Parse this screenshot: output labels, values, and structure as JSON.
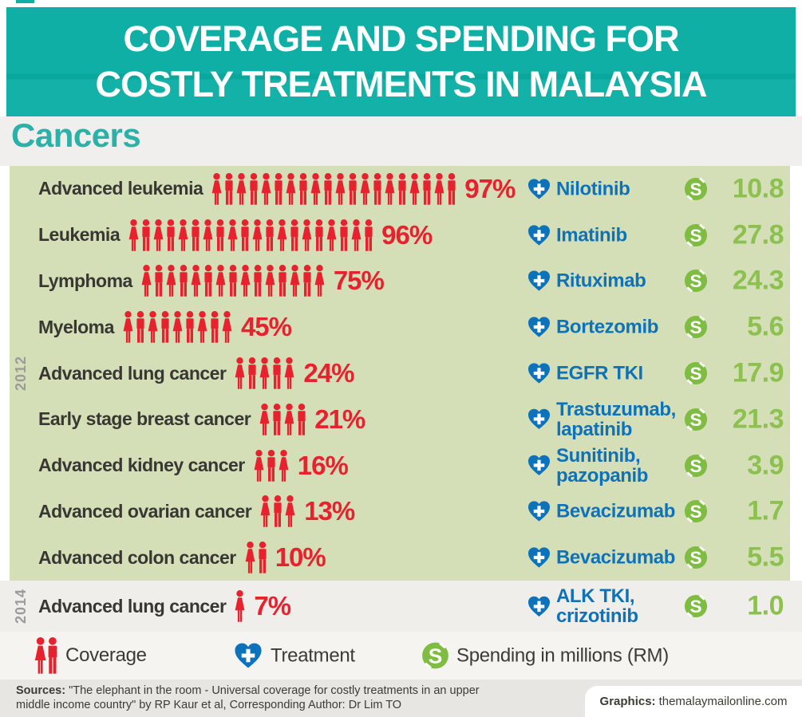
{
  "header": {
    "title_line1": "COVERAGE AND SPENDING FOR",
    "title_line2": "COSTLY TREATMENTS IN MALAYSIA"
  },
  "section": {
    "title": "Cancers"
  },
  "colors": {
    "teal": "#0fafa5",
    "section_title_teal": "#2bb2a8",
    "panel_green": "#d4dfb8",
    "coverage_red": "#e7222e",
    "treatment_blue": "#0d72b9",
    "spending_green": "#8cc04f",
    "dollar_disc_green": "#7fbc42",
    "year_gray": "#9b9b99",
    "label_dark": "#383732"
  },
  "groups": [
    {
      "year": "2012",
      "rows": [
        {
          "condition": "Advanced leukemia",
          "coverage_pct": "97%",
          "icon_count": 20,
          "treatment": "Nilotinib",
          "spending": "10.8"
        },
        {
          "condition": "Leukemia",
          "coverage_pct": "96%",
          "icon_count": 20,
          "treatment": "Imatinib",
          "spending": "27.8"
        },
        {
          "condition": "Lymphoma",
          "coverage_pct": "75%",
          "icon_count": 15,
          "treatment": "Rituximab",
          "spending": "24.3"
        },
        {
          "condition": "Myeloma",
          "coverage_pct": "45%",
          "icon_count": 9,
          "treatment": "Bortezomib",
          "spending": "5.6"
        },
        {
          "condition": "Advanced lung cancer",
          "coverage_pct": "24%",
          "icon_count": 5,
          "treatment": "EGFR TKI",
          "spending": "17.9"
        },
        {
          "condition": "Early stage breast cancer",
          "coverage_pct": "21%",
          "icon_count": 4,
          "treatment": "Trastuzumab,\nlapatinib",
          "spending": "21.3"
        },
        {
          "condition": "Advanced kidney cancer",
          "coverage_pct": "16%",
          "icon_count": 3,
          "treatment": "Sunitinib,\npazopanib",
          "spending": "3.9"
        },
        {
          "condition": "Advanced ovarian cancer",
          "coverage_pct": "13%",
          "icon_count": 3,
          "treatment": "Bevacizumab",
          "spending": "1.7"
        },
        {
          "condition": "Advanced colon cancer",
          "coverage_pct": "10%",
          "icon_count": 2,
          "treatment": "Bevacizumab",
          "spending": "5.5"
        }
      ]
    },
    {
      "year": "2014",
      "rows": [
        {
          "condition": "Advanced lung cancer",
          "coverage_pct": "7%",
          "icon_count": 1,
          "treatment": "ALK TKI,\ncrizotinib",
          "spending": "1.0"
        }
      ]
    }
  ],
  "legend": {
    "items": [
      {
        "icon": "people-icon",
        "label": "Coverage"
      },
      {
        "icon": "heart-cross-icon",
        "label": "Treatment"
      },
      {
        "icon": "dollar-icon",
        "label": "Spending in millions (RM)"
      }
    ]
  },
  "footer": {
    "sources_label": "Sources:",
    "sources_text": "\"The elephant in the room - Universal coverage for costly treatments in an upper middle income country\" by RP Kaur et al, Corresponding Author: Dr Lim TO",
    "graphics_label": "Graphics:",
    "graphics_text": "themalaymailonline.com"
  },
  "chart_data": {
    "type": "pictogram",
    "title": "Coverage and spending for costly treatments in Malaysia",
    "subtitle": "Cancers",
    "unit_per_icon_pct": 5,
    "legend": [
      "Coverage",
      "Treatment",
      "Spending in millions (RM)"
    ],
    "rows": [
      {
        "year": 2012,
        "condition": "Advanced leukemia",
        "coverage_pct": 97,
        "treatment": "Nilotinib",
        "spending_rm_millions": 10.8
      },
      {
        "year": 2012,
        "condition": "Leukemia",
        "coverage_pct": 96,
        "treatment": "Imatinib",
        "spending_rm_millions": 27.8
      },
      {
        "year": 2012,
        "condition": "Lymphoma",
        "coverage_pct": 75,
        "treatment": "Rituximab",
        "spending_rm_millions": 24.3
      },
      {
        "year": 2012,
        "condition": "Myeloma",
        "coverage_pct": 45,
        "treatment": "Bortezomib",
        "spending_rm_millions": 5.6
      },
      {
        "year": 2012,
        "condition": "Advanced lung cancer",
        "coverage_pct": 24,
        "treatment": "EGFR TKI",
        "spending_rm_millions": 17.9
      },
      {
        "year": 2012,
        "condition": "Early stage breast cancer",
        "coverage_pct": 21,
        "treatment": "Trastuzumab, lapatinib",
        "spending_rm_millions": 21.3
      },
      {
        "year": 2012,
        "condition": "Advanced kidney cancer",
        "coverage_pct": 16,
        "treatment": "Sunitinib, pazopanib",
        "spending_rm_millions": 3.9
      },
      {
        "year": 2012,
        "condition": "Advanced ovarian cancer",
        "coverage_pct": 13,
        "treatment": "Bevacizumab",
        "spending_rm_millions": 1.7
      },
      {
        "year": 2012,
        "condition": "Advanced colon cancer",
        "coverage_pct": 10,
        "treatment": "Bevacizumab",
        "spending_rm_millions": 5.5
      },
      {
        "year": 2014,
        "condition": "Advanced lung cancer",
        "coverage_pct": 7,
        "treatment": "ALK TKI, crizotinib",
        "spending_rm_millions": 1.0
      }
    ]
  }
}
